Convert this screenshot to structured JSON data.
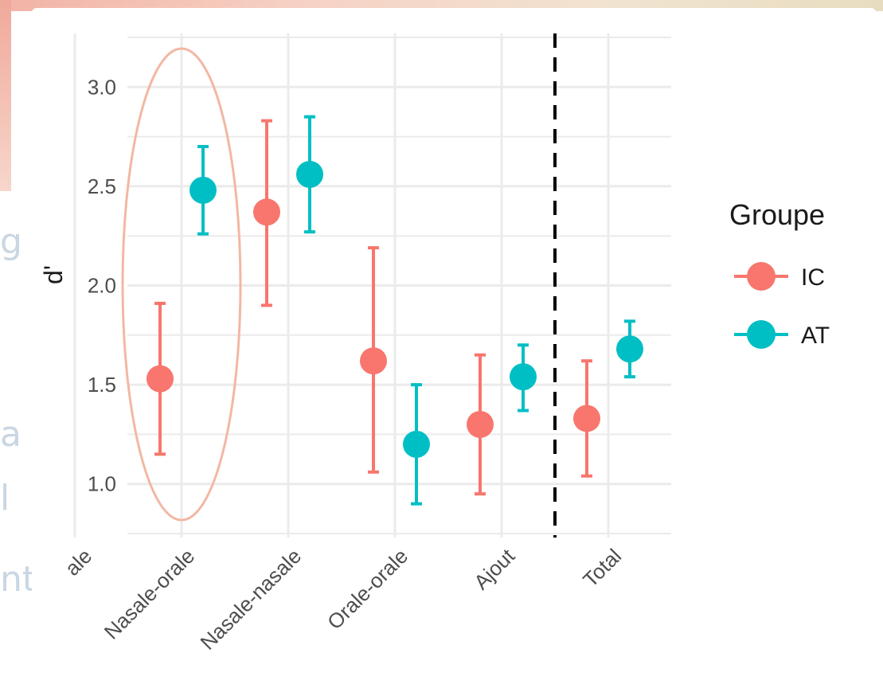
{
  "background_fragments": {
    "left_a": "g",
    "left_b": "a",
    "left_c": "l",
    "left_d": "nt)"
  },
  "colors": {
    "IC": "#f8766d",
    "AT": "#00bfc4",
    "grid": "#ebebeb",
    "highlight_ellipse": "#f3b7a3"
  },
  "chart_data": {
    "type": "scatter",
    "subtype": "point-errorbar",
    "categories": [
      "Nasale-orale",
      "Nasale-nasale",
      "Orale-orale",
      "Ajout",
      "Total"
    ],
    "clipped_category_label": "ale",
    "series": [
      {
        "name": "IC",
        "values": [
          1.53,
          2.37,
          1.62,
          1.3,
          1.33
        ],
        "lower": [
          1.15,
          1.9,
          1.06,
          0.95,
          1.04
        ],
        "upper": [
          1.91,
          2.83,
          2.19,
          1.65,
          1.62
        ]
      },
      {
        "name": "AT",
        "values": [
          2.48,
          2.56,
          1.2,
          1.54,
          1.68
        ],
        "lower": [
          2.26,
          2.27,
          0.9,
          1.37,
          1.54
        ],
        "upper": [
          2.7,
          2.85,
          1.5,
          1.7,
          1.82
        ]
      }
    ],
    "xlabel": "",
    "ylabel": "d'",
    "yticks": [
      "1.0",
      "1.5",
      "2.0",
      "2.5",
      "3.0"
    ],
    "ylim": [
      0.73,
      3.27
    ],
    "legend": {
      "title": "Groupe",
      "position": "right",
      "entries": [
        "IC",
        "AT"
      ]
    },
    "grid": true,
    "separator": "dashed vertical line between Ajout and Total",
    "highlight": "ellipse around Nasale-orale"
  }
}
